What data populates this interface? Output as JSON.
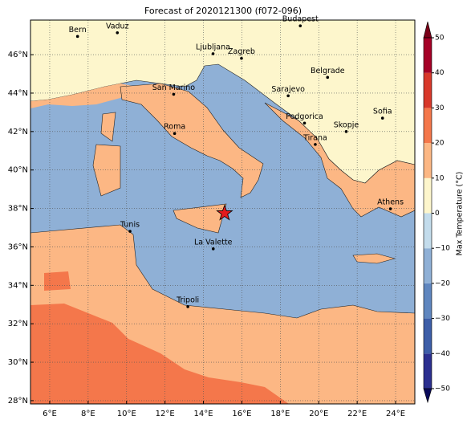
{
  "title": "Forecast of 2020121300 (f072-096)",
  "map": {
    "lonlim": [
      5,
      25
    ],
    "latlim": [
      27.83,
      47.8
    ],
    "xticks": [
      {
        "value": 6,
        "label": "6°E"
      },
      {
        "value": 8,
        "label": "8°E"
      },
      {
        "value": 10,
        "label": "10°E"
      },
      {
        "value": 12,
        "label": "12°E"
      },
      {
        "value": 14,
        "label": "14°E"
      },
      {
        "value": 16,
        "label": "16°E"
      },
      {
        "value": 18,
        "label": "18°E"
      },
      {
        "value": 20,
        "label": "20°E"
      },
      {
        "value": 22,
        "label": "22°E"
      },
      {
        "value": 24,
        "label": "24°E"
      }
    ],
    "yticks": [
      {
        "value": 28,
        "label": "28°N"
      },
      {
        "value": 30,
        "label": "30°N"
      },
      {
        "value": 32,
        "label": "32°N"
      },
      {
        "value": 34,
        "label": "34°N"
      },
      {
        "value": 36,
        "label": "36°N"
      },
      {
        "value": 38,
        "label": "38°N"
      },
      {
        "value": 40,
        "label": "40°N"
      },
      {
        "value": 42,
        "label": "42°N"
      },
      {
        "value": 44,
        "label": "44°N"
      },
      {
        "value": 46,
        "label": "46°N"
      }
    ],
    "cities": [
      {
        "name": "Bern",
        "lon": 7.45,
        "lat": 46.95
      },
      {
        "name": "Vaduz",
        "lon": 9.52,
        "lat": 47.14
      },
      {
        "name": "Budapest",
        "lon": 19.04,
        "lat": 47.5
      },
      {
        "name": "Ljubljana",
        "lon": 14.5,
        "lat": 46.05
      },
      {
        "name": "Zagreb",
        "lon": 15.98,
        "lat": 45.81
      },
      {
        "name": "Belgrade",
        "lon": 20.46,
        "lat": 44.82
      },
      {
        "name": "San Marino",
        "lon": 12.45,
        "lat": 43.94
      },
      {
        "name": "Sarajevo",
        "lon": 18.41,
        "lat": 43.86
      },
      {
        "name": "Sofia",
        "lon": 23.32,
        "lat": 42.7
      },
      {
        "name": "Podgorica",
        "lon": 19.26,
        "lat": 42.44
      },
      {
        "name": "Skopje",
        "lon": 21.43,
        "lat": 42.0
      },
      {
        "name": "Roma",
        "lon": 12.5,
        "lat": 41.9
      },
      {
        "name": "Tirana",
        "lon": 19.82,
        "lat": 41.33
      },
      {
        "name": "Athens",
        "lon": 23.73,
        "lat": 37.98
      },
      {
        "name": "Tunis",
        "lon": 10.18,
        "lat": 36.81
      },
      {
        "name": "La Valette",
        "lon": 14.51,
        "lat": 35.9
      },
      {
        "name": "Tripoli",
        "lon": 13.19,
        "lat": 32.89
      }
    ],
    "marker": {
      "lon": 15.1,
      "lat": 37.75,
      "color": "#e41a1c"
    }
  },
  "colorbar": {
    "label": "Max Temperature (°C)",
    "lim": [
      -50,
      50
    ],
    "ticks": [
      {
        "value": -50,
        "label": "−50"
      },
      {
        "value": -40,
        "label": "−40"
      },
      {
        "value": -30,
        "label": "−30"
      },
      {
        "value": -20,
        "label": "−20"
      },
      {
        "value": -10,
        "label": "−10"
      },
      0,
      10,
      20,
      30,
      40,
      50
    ],
    "colors": [
      "#2b2f8f",
      "#3d5ea8",
      "#5f86bf",
      "#8fb0d6",
      "#c3dcec",
      "#fdf6cc",
      "#fcb784",
      "#f4774b",
      "#d8382a",
      "#a50026"
    ],
    "under_color": "#0a0a5a",
    "over_color": "#7a0018"
  }
}
